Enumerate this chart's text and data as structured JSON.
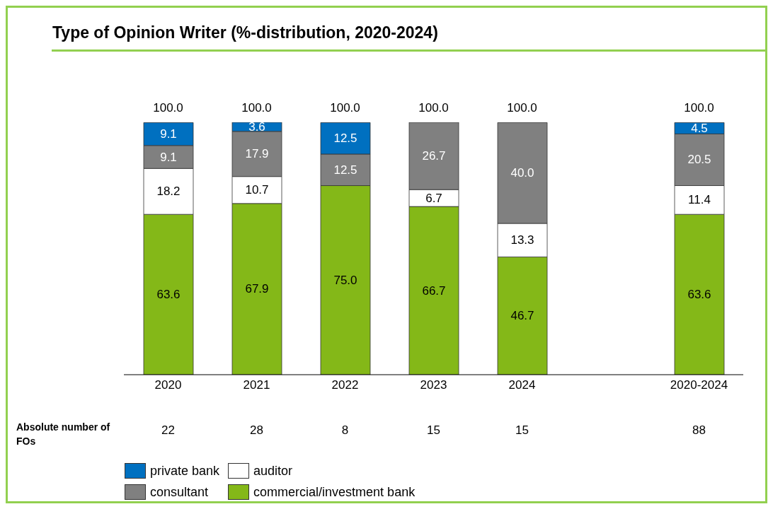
{
  "chart_data": {
    "type": "bar",
    "title": "Type of Opinion Writer (%-distribution, 2020-2024)",
    "categories": [
      "2020",
      "2021",
      "2022",
      "2023",
      "2024",
      null,
      "2020-2024"
    ],
    "stacked": true,
    "legend": "bottom",
    "grid": false,
    "totals": [
      "100.0",
      "100.0",
      "100.0",
      "100.0",
      "100.0",
      null,
      "100.0"
    ],
    "series": [
      {
        "name": "commercial/investment bank",
        "color": "#84b818",
        "values": [
          63.6,
          67.9,
          75.0,
          66.7,
          46.7,
          null,
          63.6
        ],
        "value_labels": [
          "63.6",
          "67.9",
          "75.0",
          "66.7",
          "46.7",
          null,
          "63.6"
        ]
      },
      {
        "name": "auditor",
        "color": "#ffffff",
        "values": [
          18.2,
          10.7,
          null,
          6.7,
          13.3,
          null,
          11.4
        ],
        "value_labels": [
          "18.2",
          "10.7",
          null,
          "6.7",
          "13.3",
          null,
          "11.4"
        ]
      },
      {
        "name": "consultant",
        "color": "#808080",
        "values": [
          9.1,
          17.9,
          12.5,
          26.7,
          40.0,
          null,
          20.5
        ],
        "value_labels": [
          "9.1",
          "17.9",
          "12.5",
          "26.7",
          "40.0",
          null,
          "20.5"
        ]
      },
      {
        "name": "private bank",
        "color": "#0070c0",
        "values": [
          9.1,
          3.6,
          12.5,
          null,
          null,
          null,
          4.5
        ],
        "value_labels": [
          "9.1",
          "3.6",
          "12.5",
          null,
          null,
          null,
          "4.5"
        ]
      }
    ],
    "annotations": [
      "Absolute number of FOs",
      "22",
      "28",
      "8",
      "15",
      "15",
      "88"
    ]
  }
}
